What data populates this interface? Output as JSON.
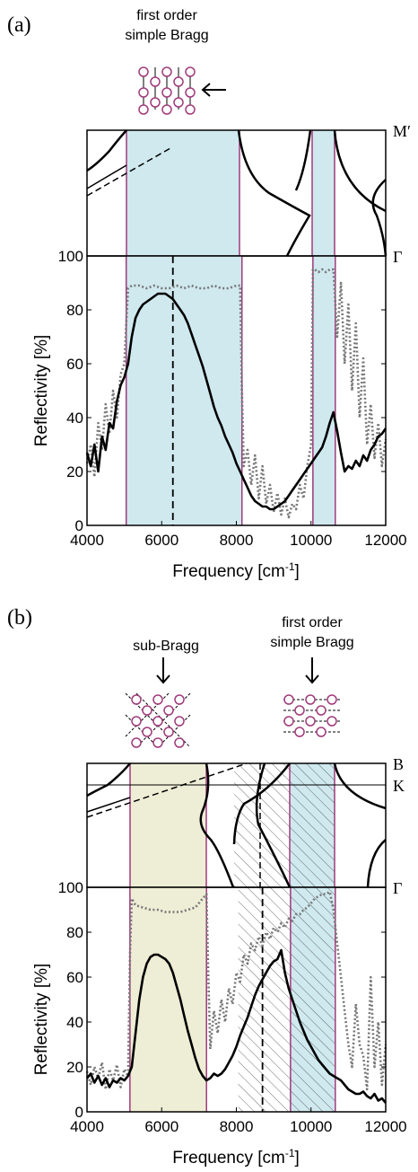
{
  "chart_data": [
    {
      "type": "line",
      "panel_label": "(a)",
      "annotations": [
        {
          "text_lines": [
            "first order",
            "simple Bragg"
          ]
        }
      ],
      "band_diagram": {
        "k_labels_right": [
          "M′",
          "Γ"
        ]
      },
      "xlabel": "Frequency [cm",
      "xlabel_sup": "-1",
      "xlabel_close": "]",
      "ylabel": "Reflectivity [%]",
      "xlim": [
        4000,
        12000
      ],
      "ylim": [
        0,
        100
      ],
      "xticks": [
        4000,
        6000,
        8000,
        10000,
        12000
      ],
      "yticks": [
        0,
        20,
        40,
        60,
        80,
        100
      ],
      "grid": false,
      "stop_bands": [
        {
          "x0": 5050,
          "x1": 8150,
          "color": "#cfe9ef"
        },
        {
          "x0": 10050,
          "x1": 10650,
          "color": "#cfe9ef"
        }
      ],
      "band_edge_color": "#a03a7a",
      "dashed_line_x": 6300,
      "series": [
        {
          "style": "solid",
          "color": "#000000",
          "x": [
            4000,
            4100,
            4200,
            4300,
            4400,
            4500,
            4600,
            4700,
            4800,
            4900,
            5000,
            5100,
            5200,
            5300,
            5400,
            5500,
            5600,
            5700,
            5800,
            5900,
            6000,
            6100,
            6200,
            6300,
            6400,
            6500,
            6600,
            6700,
            6800,
            6900,
            7000,
            7100,
            7200,
            7300,
            7400,
            7500,
            7600,
            7700,
            7800,
            7900,
            8000,
            8100,
            8200,
            8300,
            8400,
            8500,
            8600,
            8700,
            8800,
            8900,
            9000,
            9100,
            9200,
            9300,
            9400,
            9500,
            9600,
            9700,
            9800,
            9900,
            10000,
            10100,
            10200,
            10300,
            10400,
            10500,
            10600,
            10700,
            10800,
            10900,
            11000,
            11100,
            11200,
            11300,
            11400,
            11500,
            11600,
            11700,
            11800,
            11900,
            12000
          ],
          "y": [
            27,
            22,
            30,
            20,
            33,
            28,
            38,
            36,
            46,
            52,
            55,
            60,
            70,
            77,
            80,
            82,
            83,
            84,
            85,
            86,
            86,
            86,
            85,
            84,
            82,
            80,
            78,
            75,
            71,
            67,
            63,
            59,
            54,
            49,
            44,
            40,
            37,
            33,
            30,
            27,
            23,
            20,
            17,
            14,
            11,
            9,
            8,
            7,
            7,
            6,
            6,
            7,
            8,
            9,
            11,
            13,
            15,
            17,
            19,
            21,
            23,
            25,
            27,
            29,
            33,
            38,
            42,
            35,
            27,
            20,
            22,
            21,
            24,
            22,
            26,
            24,
            28,
            30,
            33,
            34,
            36
          ]
        },
        {
          "style": "dotted",
          "color": "#777777",
          "x": [
            4000,
            4100,
            4200,
            4300,
            4400,
            4500,
            4600,
            4700,
            4800,
            4900,
            5000,
            5050,
            5100,
            5200,
            5400,
            5600,
            5800,
            6000,
            6200,
            6400,
            6600,
            6800,
            7000,
            7200,
            7400,
            7600,
            7800,
            8000,
            8100,
            8150,
            8200,
            8300,
            8400,
            8500,
            8600,
            8700,
            8800,
            8900,
            9000,
            9100,
            9200,
            9300,
            9400,
            9500,
            9600,
            9700,
            9800,
            9900,
            10000,
            10050,
            10100,
            10200,
            10300,
            10400,
            10500,
            10600,
            10700,
            10800,
            10900,
            11000,
            11100,
            11200,
            11300,
            11400,
            11500,
            11600,
            11700,
            11800,
            11900,
            12000
          ],
          "y": [
            23,
            30,
            18,
            38,
            28,
            45,
            34,
            50,
            40,
            56,
            60,
            75,
            88,
            89,
            89,
            88,
            89,
            88,
            88,
            89,
            88,
            89,
            88,
            88,
            89,
            88,
            88,
            89,
            89,
            50,
            22,
            28,
            15,
            26,
            10,
            22,
            8,
            15,
            5,
            12,
            4,
            10,
            3,
            8,
            6,
            15,
            10,
            22,
            30,
            95,
            95,
            94,
            95,
            94,
            95,
            95,
            70,
            90,
            60,
            82,
            50,
            75,
            40,
            62,
            30,
            45,
            25,
            38,
            22,
            32
          ]
        }
      ]
    },
    {
      "type": "line",
      "panel_label": "(b)",
      "annotations": [
        {
          "text_lines": [
            "sub-Bragg"
          ]
        },
        {
          "text_lines": [
            "first order",
            "simple Bragg"
          ]
        }
      ],
      "band_diagram": {
        "k_labels_right": [
          "B",
          "K",
          "Γ"
        ]
      },
      "xlabel": "Frequency [cm",
      "xlabel_sup": "-1",
      "xlabel_close": "]",
      "ylabel": "Reflectivity [%]",
      "xlim": [
        4000,
        12000
      ],
      "ylim": [
        0,
        100
      ],
      "xticks": [
        4000,
        6000,
        8000,
        10000,
        12000
      ],
      "yticks": [
        0,
        20,
        40,
        60,
        80,
        100
      ],
      "grid": false,
      "stop_bands": [
        {
          "x0": 5150,
          "x1": 7200,
          "color": "#eeeed6"
        },
        {
          "x0": 9450,
          "x1": 10650,
          "color": "#cfe9ef"
        }
      ],
      "hatched_band": {
        "x0": 8050,
        "x1": 10650
      },
      "band_edge_color": "#a03a7a",
      "dashed_line_x": 8700,
      "series": [
        {
          "style": "solid",
          "color": "#000000",
          "x": [
            4000,
            4100,
            4200,
            4300,
            4400,
            4500,
            4600,
            4700,
            4800,
            4900,
            5000,
            5100,
            5200,
            5300,
            5400,
            5500,
            5600,
            5700,
            5800,
            5900,
            6000,
            6100,
            6200,
            6300,
            6400,
            6500,
            6600,
            6700,
            6800,
            6900,
            7000,
            7100,
            7200,
            7300,
            7400,
            7500,
            7600,
            7700,
            7800,
            7900,
            8000,
            8100,
            8200,
            8300,
            8400,
            8500,
            8600,
            8700,
            8800,
            8900,
            9000,
            9100,
            9200,
            9300,
            9400,
            9500,
            9600,
            9700,
            9800,
            9900,
            10000,
            10100,
            10200,
            10300,
            10400,
            10500,
            10600,
            10700,
            10800,
            10900,
            11000,
            11100,
            11200,
            11300,
            11400,
            11500,
            11600,
            11700,
            11800,
            11900,
            12000
          ],
          "y": [
            15,
            17,
            13,
            16,
            12,
            15,
            11,
            14,
            13,
            15,
            14,
            16,
            20,
            35,
            50,
            60,
            66,
            69,
            70,
            70,
            69,
            68,
            66,
            62,
            56,
            50,
            43,
            36,
            30,
            24,
            19,
            16,
            14,
            15,
            17,
            16,
            17,
            19,
            22,
            25,
            29,
            34,
            38,
            42,
            47,
            52,
            56,
            59,
            62,
            65,
            67,
            68,
            72,
            62,
            55,
            50,
            45,
            40,
            36,
            32,
            29,
            26,
            23,
            21,
            19,
            17,
            16,
            15,
            14,
            12,
            10,
            9,
            8,
            8,
            9,
            7,
            6,
            8,
            5,
            6,
            4
          ]
        },
        {
          "style": "dotted",
          "color": "#777777",
          "x": [
            4000,
            4100,
            4200,
            4300,
            4400,
            4500,
            4600,
            4700,
            4800,
            4900,
            5000,
            5100,
            5150,
            5200,
            5300,
            5500,
            5700,
            5900,
            6100,
            6300,
            6500,
            6700,
            6900,
            7100,
            7200,
            7250,
            7300,
            7400,
            7500,
            7600,
            7700,
            7800,
            7900,
            8000,
            8100,
            8200,
            8300,
            8400,
            8500,
            8600,
            8700,
            8800,
            8900,
            9000,
            9100,
            9200,
            9300,
            9400,
            9500,
            9600,
            9700,
            9800,
            9900,
            10000,
            10100,
            10200,
            10300,
            10400,
            10500,
            10600,
            10700,
            10800,
            10900,
            11000,
            11100,
            11200,
            11300,
            11400,
            11500,
            11600,
            11700,
            11800,
            11900,
            12000
          ],
          "y": [
            18,
            12,
            20,
            15,
            22,
            10,
            19,
            14,
            21,
            11,
            19,
            16,
            70,
            95,
            92,
            91,
            90,
            90,
            89,
            89,
            89,
            90,
            91,
            95,
            97,
            60,
            28,
            45,
            35,
            50,
            40,
            55,
            48,
            62,
            58,
            70,
            66,
            75,
            72,
            78,
            74,
            80,
            77,
            82,
            80,
            84,
            82,
            86,
            85,
            88,
            88,
            90,
            91,
            93,
            95,
            96,
            97,
            97,
            98,
            90,
            75,
            60,
            45,
            30,
            20,
            48,
            30,
            25,
            10,
            60,
            20,
            40,
            12,
            30
          ]
        }
      ]
    }
  ]
}
